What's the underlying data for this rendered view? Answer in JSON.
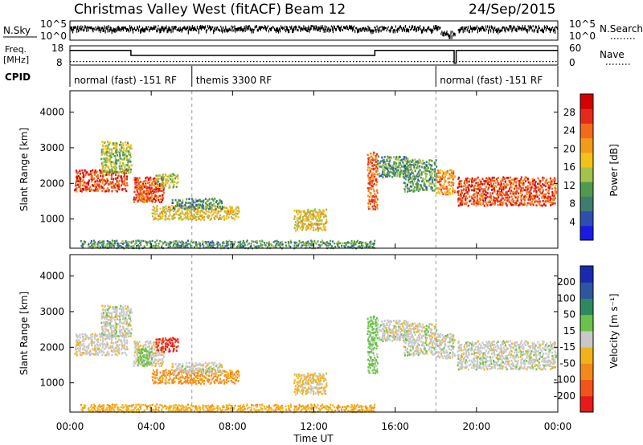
{
  "header": {
    "station": "Christmas Valley West (fitACF)",
    "beam": "Beam 12",
    "date": "24/Sep/2015"
  },
  "noise_panel": {
    "left_label": "N.Sky",
    "right_label": "N.Search",
    "left_ticks": [
      "10^5",
      "10^0"
    ],
    "right_ticks": [
      "10^5",
      "10^0"
    ]
  },
  "freq_panel": {
    "left_label_1": "Freq.",
    "left_label_2": "[MHz]",
    "left_ticks": [
      "18",
      "8"
    ],
    "right_label": "Nave",
    "right_ticks": [
      "60",
      "0"
    ]
  },
  "cpid": {
    "label": "CPID",
    "segments": [
      {
        "start_hour": 0,
        "end_hour": 6,
        "text": "normal (fast) -151 RF"
      },
      {
        "start_hour": 6,
        "end_hour": 18,
        "text": "themis 3300 RF"
      },
      {
        "start_hour": 18,
        "end_hour": 24,
        "text": "normal (fast) -151 RF"
      }
    ]
  },
  "power_panel": {
    "ylabel": "Slant Range [km]",
    "yticks": [
      "1000",
      "2000",
      "3000",
      "4000"
    ],
    "colorbar_label": "Power [dB]",
    "colorbar_ticks": [
      "4",
      "8",
      "12",
      "16",
      "20",
      "24",
      "28"
    ],
    "colors": [
      "#1a1ae6",
      "#2e4fb0",
      "#3f7d6e",
      "#4f9a4f",
      "#a3c24a",
      "#f2c21a",
      "#f29a1a",
      "#f26a1a",
      "#e62a1a",
      "#d40000"
    ]
  },
  "velocity_panel": {
    "ylabel": "Slant Range [km]",
    "yticks": [
      "1000",
      "2000",
      "3000",
      "4000"
    ],
    "colorbar_label": "Velocity [m s⁻¹]",
    "colorbar_ticks": [
      "200",
      "100",
      "50",
      "15",
      "-15",
      "-50",
      "-100",
      "-200"
    ],
    "colors": [
      "#1a2ab0",
      "#2e55a0",
      "#2e8a5e",
      "#6ac24a",
      "#c8c8c8",
      "#f2b21a",
      "#f28a1a",
      "#f2551a",
      "#e61a1a"
    ]
  },
  "xaxis": {
    "label": "Time UT",
    "ticks": [
      "00:00",
      "04:00",
      "08:00",
      "12:00",
      "16:00",
      "20:00",
      "00:00"
    ]
  },
  "chart_data": {
    "type": "heatmap",
    "x_unit": "hours UT",
    "xlim": [
      0,
      24
    ],
    "y_unit": "km",
    "ylim": [
      180,
      4600
    ],
    "power_clim": [
      0,
      32
    ],
    "velocity_clim": [
      -250,
      250
    ],
    "frequency_steps": [
      [
        0,
        15.2
      ],
      [
        3,
        10
      ],
      [
        15,
        15.2
      ],
      [
        18.9,
        2
      ],
      [
        19,
        15.2
      ],
      [
        24,
        15.2
      ]
    ],
    "nave_level": 11,
    "scatter_regions": [
      {
        "t0": 0.2,
        "t1": 2.8,
        "r0": 1800,
        "r1": 2400,
        "power": 26,
        "vel": -5
      },
      {
        "t0": 1.5,
        "t1": 3.0,
        "r0": 2300,
        "r1": 3200,
        "power": 14,
        "vel": 0
      },
      {
        "t0": 3.1,
        "t1": 4.6,
        "r0": 1500,
        "r1": 2200,
        "power": 27,
        "vel": -8
      },
      {
        "t0": 3.3,
        "t1": 4.0,
        "r0": 1500,
        "r1": 2000,
        "power": 24,
        "vel": 30
      },
      {
        "t0": 4.2,
        "t1": 5.3,
        "r0": 1900,
        "r1": 2300,
        "power": 15,
        "vel": -210
      },
      {
        "t0": 4.0,
        "t1": 8.3,
        "r0": 1000,
        "r1": 1400,
        "power": 18,
        "vel": -60
      },
      {
        "t0": 5.0,
        "t1": 7.5,
        "r0": 1300,
        "r1": 1600,
        "power": 10,
        "vel": 0
      },
      {
        "t0": 0.5,
        "t1": 15.0,
        "r0": 200,
        "r1": 420,
        "power": 10,
        "vel": -40
      },
      {
        "t0": 11.0,
        "t1": 12.6,
        "r0": 700,
        "r1": 1300,
        "power": 18,
        "vel": -20
      },
      {
        "t0": 14.6,
        "t1": 15.1,
        "r0": 1300,
        "r1": 2900,
        "power": 24,
        "vel": 30
      },
      {
        "t0": 15.1,
        "t1": 16.6,
        "r0": 2200,
        "r1": 2800,
        "power": 10,
        "vel": 0
      },
      {
        "t0": 16.4,
        "t1": 18.0,
        "r0": 1800,
        "r1": 2700,
        "power": 11,
        "vel": 0
      },
      {
        "t0": 18.0,
        "t1": 18.9,
        "r0": 1700,
        "r1": 2400,
        "power": 22,
        "vel": 0
      },
      {
        "t0": 19.0,
        "t1": 23.9,
        "r0": 1400,
        "r1": 2200,
        "power": 26,
        "vel": 0
      }
    ]
  }
}
